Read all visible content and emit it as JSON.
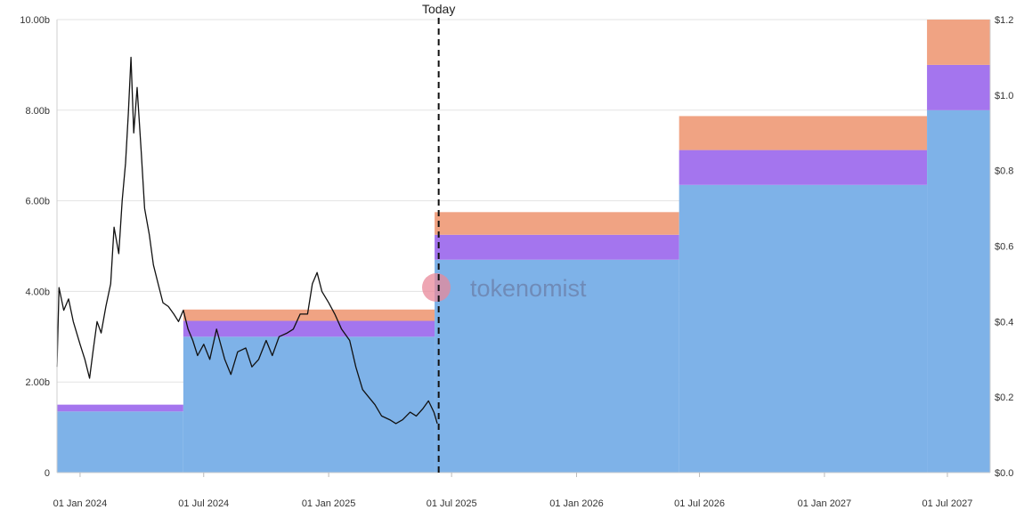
{
  "chart_data": {
    "type": "area",
    "today_label": "Today",
    "watermark": "tokenomist",
    "y_left": {
      "min": 0,
      "max": 10,
      "ticks": [
        0,
        2,
        4,
        6,
        8,
        10
      ],
      "tick_labels": [
        "0",
        "2.00b",
        "4.00b",
        "6.00b",
        "8.00b",
        "10.00b"
      ]
    },
    "y_right": {
      "min": 0,
      "max": 1.2,
      "ticks": [
        0,
        0.2,
        0.4,
        0.6,
        0.8,
        1.0,
        1.2
      ],
      "tick_labels": [
        "$0.0",
        "$0.2",
        "$0.4",
        "$0.6",
        "$0.8",
        "$1.0",
        "$1.2"
      ]
    },
    "x_range": [
      "2023-11-28",
      "2027-09-02"
    ],
    "x_ticks": [
      {
        "date": "2024-01-01",
        "label": "01 Jan 2024"
      },
      {
        "date": "2024-07-01",
        "label": "01 Jul 2024"
      },
      {
        "date": "2025-01-01",
        "label": "01 Jan 2025"
      },
      {
        "date": "2025-07-01",
        "label": "01 Jul 2025"
      },
      {
        "date": "2026-01-01",
        "label": "01 Jan 2026"
      },
      {
        "date": "2026-07-01",
        "label": "01 Jul 2026"
      },
      {
        "date": "2027-01-01",
        "label": "01 Jan 2027"
      },
      {
        "date": "2027-07-01",
        "label": "01 Jul 2027"
      }
    ],
    "today_date": "2025-06-12",
    "colors": {
      "blue": "#7eb2e8",
      "purple": "#a475ee",
      "orange": "#f0a383",
      "price": "#111111",
      "grid": "#e3e3e3",
      "today": "#111111"
    },
    "steps": [
      {
        "start": "2023-11-28",
        "blue": 1.35,
        "purple": 0.15,
        "orange": 0
      },
      {
        "start": "2024-06-01",
        "blue": 3.0,
        "purple": 0.35,
        "orange": 0.25
      },
      {
        "start": "2025-06-06",
        "blue": 4.7,
        "purple": 0.55,
        "orange": 0.5
      },
      {
        "start": "2026-06-01",
        "blue": 6.35,
        "purple": 0.77,
        "orange": 0.75
      },
      {
        "start": "2027-06-01",
        "blue": 8.0,
        "purple": 1.0,
        "orange": 1.0
      }
    ],
    "price_series": {
      "dates": [
        "2023-11-28",
        "2023-12-01",
        "2023-12-08",
        "2023-12-15",
        "2023-12-22",
        "2024-01-01",
        "2024-01-08",
        "2024-01-15",
        "2024-01-20",
        "2024-01-26",
        "2024-02-01",
        "2024-02-08",
        "2024-02-15",
        "2024-02-20",
        "2024-02-27",
        "2024-03-03",
        "2024-03-08",
        "2024-03-12",
        "2024-03-16",
        "2024-03-20",
        "2024-03-25",
        "2024-03-31",
        "2024-04-05",
        "2024-04-12",
        "2024-04-18",
        "2024-04-25",
        "2024-05-02",
        "2024-05-10",
        "2024-05-18",
        "2024-05-25",
        "2024-06-01",
        "2024-06-08",
        "2024-06-15",
        "2024-06-22",
        "2024-07-01",
        "2024-07-10",
        "2024-07-20",
        "2024-08-01",
        "2024-08-10",
        "2024-08-20",
        "2024-09-01",
        "2024-09-10",
        "2024-09-20",
        "2024-10-01",
        "2024-10-10",
        "2024-10-20",
        "2024-11-01",
        "2024-11-10",
        "2024-11-20",
        "2024-12-01",
        "2024-12-08",
        "2024-12-15",
        "2024-12-22",
        "2025-01-01",
        "2025-01-10",
        "2025-01-20",
        "2025-02-01",
        "2025-02-10",
        "2025-02-20",
        "2025-03-01",
        "2025-03-10",
        "2025-03-20",
        "2025-04-01",
        "2025-04-10",
        "2025-04-20",
        "2025-05-01",
        "2025-05-10",
        "2025-05-20",
        "2025-05-28",
        "2025-06-05",
        "2025-06-10"
      ],
      "values": [
        0.28,
        0.49,
        0.43,
        0.46,
        0.4,
        0.34,
        0.3,
        0.25,
        0.32,
        0.4,
        0.37,
        0.44,
        0.5,
        0.65,
        0.58,
        0.72,
        0.82,
        0.95,
        1.1,
        0.9,
        1.02,
        0.85,
        0.7,
        0.63,
        0.55,
        0.5,
        0.45,
        0.44,
        0.42,
        0.4,
        0.43,
        0.38,
        0.35,
        0.31,
        0.34,
        0.3,
        0.38,
        0.3,
        0.26,
        0.32,
        0.33,
        0.28,
        0.3,
        0.35,
        0.31,
        0.36,
        0.37,
        0.38,
        0.42,
        0.42,
        0.5,
        0.53,
        0.48,
        0.45,
        0.42,
        0.38,
        0.35,
        0.28,
        0.22,
        0.2,
        0.18,
        0.15,
        0.14,
        0.13,
        0.14,
        0.16,
        0.15,
        0.17,
        0.19,
        0.16,
        0.13
      ]
    }
  }
}
